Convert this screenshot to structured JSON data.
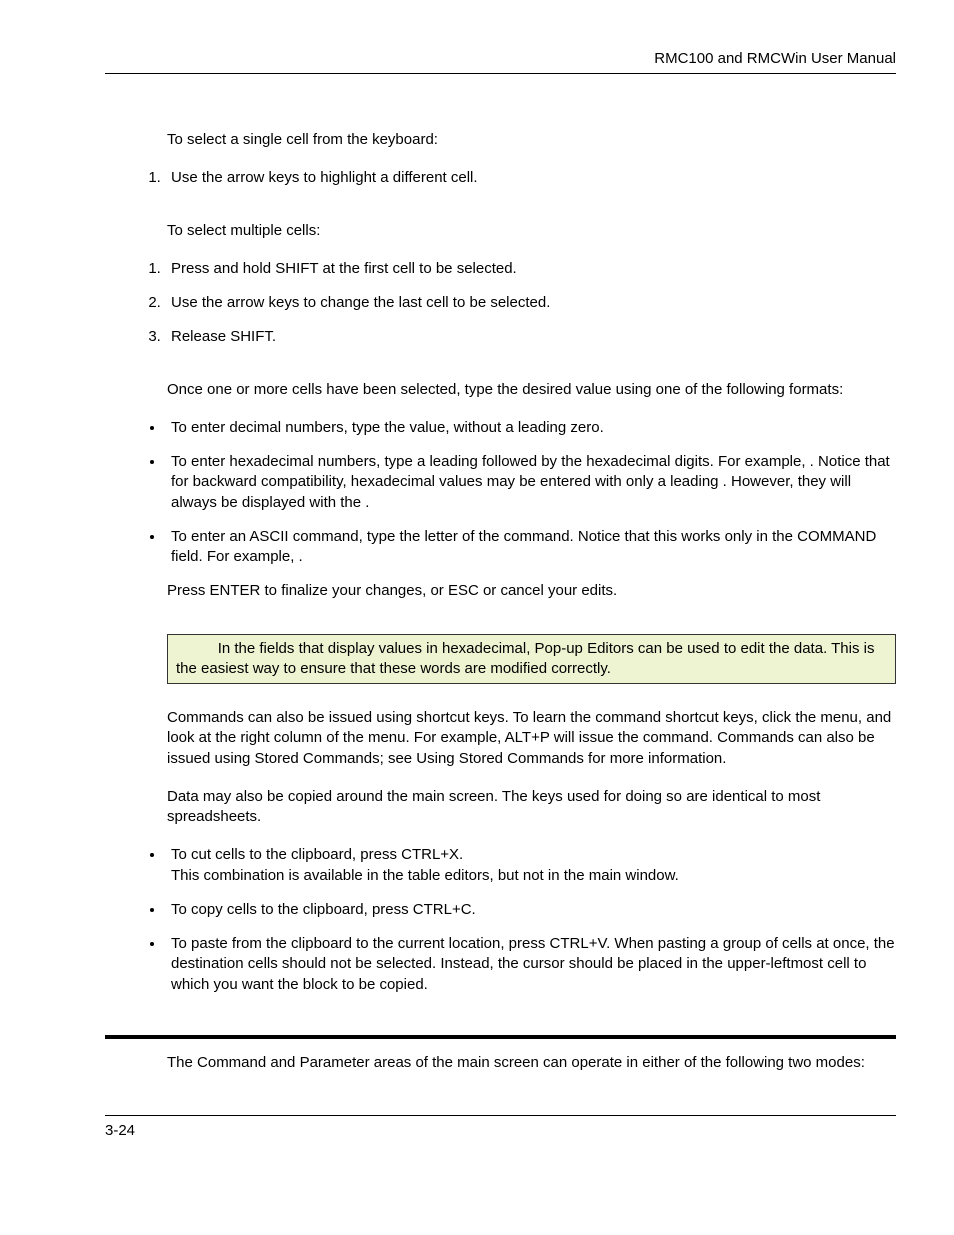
{
  "header": {
    "title": "RMC100 and RMCWin User Manual"
  },
  "body": {
    "p1": "To select a single cell from the keyboard:",
    "list1": [
      "Use the arrow keys to highlight a different cell."
    ],
    "p2": "To select multiple cells:",
    "list2": [
      "Press and hold SHIFT at the first cell to be selected.",
      "Use the arrow keys to change the last cell to be selected.",
      "Release SHIFT."
    ],
    "p3": "Once one or more cells have been selected, type the desired value using one of the following formats:",
    "bullets1": [
      "To enter decimal numbers, type the value, without a leading zero.",
      "To enter hexadecimal numbers, type a leading      followed by the hexadecimal digits. For example,             . Notice that for backward compatibility, hexadecimal values may be entered with only a leading   . However, they will always be displayed with the    .",
      "To enter an ASCII command, type the letter of the command. Notice that this works only in the COMMAND field. For example,    ."
    ],
    "p4": "Press ENTER to finalize your changes, or ESC or cancel your edits.",
    "note": "          In the fields that display values in hexadecimal, Pop-up Editors can be used to edit the data. This is the easiest way to ensure that these words are modified correctly.",
    "p5": "Commands can also be issued using shortcut keys. To learn the command shortcut keys, click the                  menu, and look at the right column of the menu. For example, ALT+P will issue the                              command. Commands can also be issued using Stored Commands; see Using Stored Commands for more information.",
    "p6": "Data may also be copied around the main screen. The keys used for doing so are identical to most spreadsheets.",
    "bullets2": [
      "To cut cells to the clipboard, press CTRL+X.\nThis combination is available in the table editors, but not in the main window.",
      "To copy cells to the clipboard, press CTRL+C.",
      "To paste from the clipboard to the current location, press CTRL+V. When pasting a group of cells at once, the destination cells should not be selected. Instead, the cursor should be placed in the upper-leftmost cell to which you want the block to be copied."
    ],
    "p7": "The Command and Parameter areas of the main screen can operate in either of the following two modes:"
  },
  "footer": {
    "page": "3-24"
  },
  "colors": {
    "note_bg": "#eef3d2",
    "text": "#000000",
    "rule": "#000000"
  }
}
